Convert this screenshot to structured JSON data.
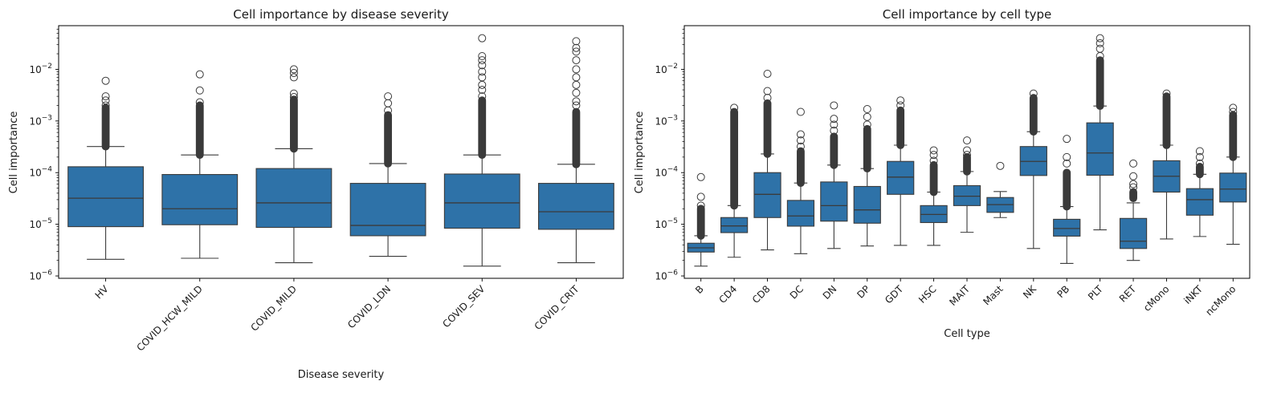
{
  "colors": {
    "box_fill": "#2e72a8",
    "line": "#3b3b3b",
    "axis": "#000000",
    "background": "#ffffff"
  },
  "chart_data": [
    {
      "type": "box",
      "title": "Cell importance by disease severity",
      "xlabel": "Disease severity",
      "ylabel": "Cell importance",
      "yscale": "log",
      "ylim": [
        9e-07,
        0.07
      ],
      "yticks": [
        {
          "base": "10",
          "exp": "−6",
          "value": 1e-06
        },
        {
          "base": "10",
          "exp": "−5",
          "value": 1e-05
        },
        {
          "base": "10",
          "exp": "−4",
          "value": 0.0001
        },
        {
          "base": "10",
          "exp": "−3",
          "value": 0.001
        },
        {
          "base": "10",
          "exp": "−2",
          "value": 0.01
        }
      ],
      "tick_rotation": 45,
      "categories": [
        "HV",
        "COVID_HCW_MILD",
        "COVID_MILD",
        "COVID_LDN",
        "COVID_SEV",
        "COVID_CRIT"
      ],
      "boxes": [
        {
          "whislo": 2.1e-06,
          "q1": 9e-06,
          "med": 3.2e-05,
          "q3": 0.00013,
          "whishi": 0.00032,
          "flier_band": [
            0.00032,
            0.0018
          ],
          "fliers": [
            0.002,
            0.0025,
            0.003,
            0.006
          ]
        },
        {
          "whislo": 2.2e-06,
          "q1": 9.8e-06,
          "med": 2e-05,
          "q3": 9.2e-05,
          "whishi": 0.00022,
          "flier_band": [
            0.00022,
            0.002
          ],
          "fliers": [
            0.0023,
            0.0039,
            0.008
          ]
        },
        {
          "whislo": 1.8e-06,
          "q1": 8.7e-06,
          "med": 2.6e-05,
          "q3": 0.00012,
          "whishi": 0.00029,
          "flier_band": [
            0.00029,
            0.0026
          ],
          "fliers": [
            0.0029,
            0.0034,
            0.007,
            0.0085,
            0.01
          ]
        },
        {
          "whislo": 2.4e-06,
          "q1": 6e-06,
          "med": 9.5e-06,
          "q3": 6.2e-05,
          "whishi": 0.00015,
          "flier_band": [
            0.00015,
            0.0013
          ],
          "fliers": [
            0.0016,
            0.0022,
            0.003
          ]
        },
        {
          "whislo": 1.55e-06,
          "q1": 8.4e-06,
          "med": 2.6e-05,
          "q3": 9.4e-05,
          "whishi": 0.00022,
          "flier_band": [
            0.00022,
            0.0025
          ],
          "fliers": [
            0.003,
            0.004,
            0.005,
            0.007,
            0.009,
            0.012,
            0.015,
            0.018,
            0.04
          ]
        },
        {
          "whislo": 1.8e-06,
          "q1": 8e-06,
          "med": 1.75e-05,
          "q3": 6.2e-05,
          "whishi": 0.000145,
          "flier_band": [
            0.000145,
            0.0015
          ],
          "fliers": [
            0.002,
            0.0024,
            0.0035,
            0.005,
            0.007,
            0.01,
            0.015,
            0.022,
            0.026,
            0.035
          ]
        }
      ]
    },
    {
      "type": "box",
      "title": "Cell importance by cell type",
      "xlabel": "Cell type",
      "ylabel": "Cell importance",
      "yscale": "log",
      "ylim": [
        9e-07,
        0.07
      ],
      "yticks": [
        {
          "base": "10",
          "exp": "−6",
          "value": 1e-06
        },
        {
          "base": "10",
          "exp": "−5",
          "value": 1e-05
        },
        {
          "base": "10",
          "exp": "−4",
          "value": 0.0001
        },
        {
          "base": "10",
          "exp": "−3",
          "value": 0.001
        },
        {
          "base": "10",
          "exp": "−2",
          "value": 0.01
        }
      ],
      "tick_rotation": 45,
      "categories": [
        "B",
        "CD4",
        "CD8",
        "DC",
        "DN",
        "DP",
        "GDT",
        "HSC",
        "MAIT",
        "Mast",
        "NK",
        "PB",
        "PLT",
        "RET",
        "cMono",
        "iNKT",
        "ncMono"
      ],
      "boxes": [
        {
          "whislo": 1.55e-06,
          "q1": 2.9e-06,
          "med": 3.5e-06,
          "q3": 4.3e-06,
          "whishi": 6e-06,
          "flier_band": [
            6e-06,
            2e-05
          ],
          "fliers": [
            2.3e-05,
            3.4e-05,
            8.2e-05
          ]
        },
        {
          "whislo": 2.3e-06,
          "q1": 6.9e-06,
          "med": 9.3e-06,
          "q3": 1.35e-05,
          "whishi": 2.3e-05,
          "flier_band": [
            2.3e-05,
            0.0015
          ],
          "fliers": [
            0.0018
          ]
        },
        {
          "whislo": 3.2e-06,
          "q1": 1.35e-05,
          "med": 3.8e-05,
          "q3": 0.0001,
          "whishi": 0.00023,
          "flier_band": [
            0.00023,
            0.0022
          ],
          "fliers": [
            0.0028,
            0.0038,
            0.0082
          ]
        },
        {
          "whislo": 2.7e-06,
          "q1": 9.2e-06,
          "med": 1.45e-05,
          "q3": 2.9e-05,
          "whishi": 6.3e-05,
          "flier_band": [
            6.3e-05,
            0.00026
          ],
          "fliers": [
            0.00032,
            0.00042,
            0.00055,
            0.0015
          ]
        },
        {
          "whislo": 3.4e-06,
          "q1": 1.15e-05,
          "med": 2.3e-05,
          "q3": 6.6e-05,
          "whishi": 0.00014,
          "flier_band": [
            0.00014,
            0.0005
          ],
          "fliers": [
            0.00065,
            0.00085,
            0.0011,
            0.002
          ]
        },
        {
          "whislo": 3.8e-06,
          "q1": 1.05e-05,
          "med": 1.9e-05,
          "q3": 5.4e-05,
          "whishi": 0.00012,
          "flier_band": [
            0.00012,
            0.0007
          ],
          "fliers": [
            0.00085,
            0.0012,
            0.0017
          ]
        },
        {
          "whislo": 3.9e-06,
          "q1": 3.8e-05,
          "med": 8.2e-05,
          "q3": 0.000165,
          "whishi": 0.00034,
          "flier_band": [
            0.00034,
            0.0016
          ],
          "fliers": [
            0.002,
            0.0025
          ]
        },
        {
          "whislo": 3.9e-06,
          "q1": 1.08e-05,
          "med": 1.55e-05,
          "q3": 2.3e-05,
          "whishi": 4.2e-05,
          "flier_band": [
            4.2e-05,
            0.00014
          ],
          "fliers": [
            0.00017,
            0.00022,
            0.00027
          ]
        },
        {
          "whislo": 7e-06,
          "q1": 2.3e-05,
          "med": 3.5e-05,
          "q3": 5.6e-05,
          "whishi": 0.000105,
          "flier_band": [
            0.000105,
            0.0002
          ],
          "fliers": [
            0.00022,
            0.00027,
            0.00042
          ]
        },
        {
          "whislo": 1.35e-05,
          "q1": 1.7e-05,
          "med": 2.4e-05,
          "q3": 3.3e-05,
          "whishi": 4.3e-05,
          "fliers": [
            0.000135
          ]
        },
        {
          "whislo": 3.4e-06,
          "q1": 8.8e-05,
          "med": 0.000165,
          "q3": 0.00032,
          "whishi": 0.00062,
          "flier_band": [
            0.00062,
            0.0028
          ],
          "fliers": [
            0.0034
          ]
        },
        {
          "whislo": 1.75e-06,
          "q1": 5.9e-06,
          "med": 8.3e-06,
          "q3": 1.25e-05,
          "whishi": 2.2e-05,
          "flier_band": [
            2.2e-05,
            0.0001
          ],
          "fliers": [
            0.00015,
            0.0002,
            0.00045
          ]
        },
        {
          "whislo": 7.8e-06,
          "q1": 8.9e-05,
          "med": 0.00024,
          "q3": 0.00092,
          "whishi": 0.00195,
          "flier_band": [
            0.00195,
            0.015
          ],
          "fliers": [
            0.018,
            0.025,
            0.032,
            0.04
          ]
        },
        {
          "whislo": 2e-06,
          "q1": 3.4e-06,
          "med": 4.7e-06,
          "q3": 1.3e-05,
          "whishi": 2.6e-05,
          "flier_band": [
            3.2e-05,
            4.2e-05
          ],
          "fliers": [
            5.2e-05,
            6e-05,
            8.5e-05,
            0.00015
          ]
        },
        {
          "whislo": 5.2e-06,
          "q1": 4.2e-05,
          "med": 8.5e-05,
          "q3": 0.00017,
          "whishi": 0.00034,
          "flier_band": [
            0.00034,
            0.003
          ],
          "fliers": [
            0.0034
          ]
        },
        {
          "whislo": 5.8e-06,
          "q1": 1.5e-05,
          "med": 3e-05,
          "q3": 4.9e-05,
          "whishi": 9.3e-05,
          "flier_band": [
            9.3e-05,
            0.00013
          ],
          "fliers": [
            0.00015,
            0.0002,
            0.00026
          ]
        },
        {
          "whislo": 4.1e-06,
          "q1": 2.7e-05,
          "med": 4.8e-05,
          "q3": 9.8e-05,
          "whishi": 0.0002,
          "flier_band": [
            0.0002,
            0.0013
          ],
          "fliers": [
            0.0015,
            0.0018
          ]
        }
      ]
    }
  ]
}
